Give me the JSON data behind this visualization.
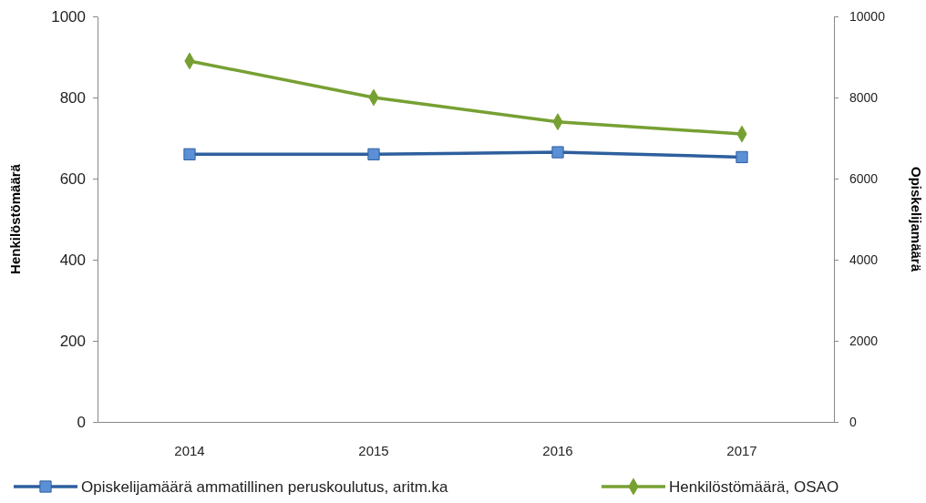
{
  "chart_data": {
    "type": "line",
    "ylabel": "Henkilöstömäärä",
    "y2label": "Opiskelijamäärä",
    "categories": [
      "2014",
      "2015",
      "2016",
      "2017"
    ],
    "series": [
      {
        "name": "Opiskelijamäärä ammatillinen peruskoulutus, aritm.ka",
        "color": "#2e5f9e",
        "values": [
          6600,
          6600,
          6650,
          6530
        ],
        "axis": "y2",
        "marker": "square"
      },
      {
        "name": "Henkilöstömäärä, OSAO",
        "color": "#77a033",
        "values": [
          890,
          800,
          740,
          710
        ],
        "marker": "diamond"
      }
    ],
    "ylim": [
      0,
      1000
    ],
    "yticks": [
      0,
      200,
      400,
      600,
      800,
      1000
    ],
    "y2lim": [
      0,
      10000
    ],
    "y2ticks": [
      0,
      2000,
      4000,
      6000,
      8000,
      10000
    ],
    "grid": false,
    "legend": "bottom"
  }
}
